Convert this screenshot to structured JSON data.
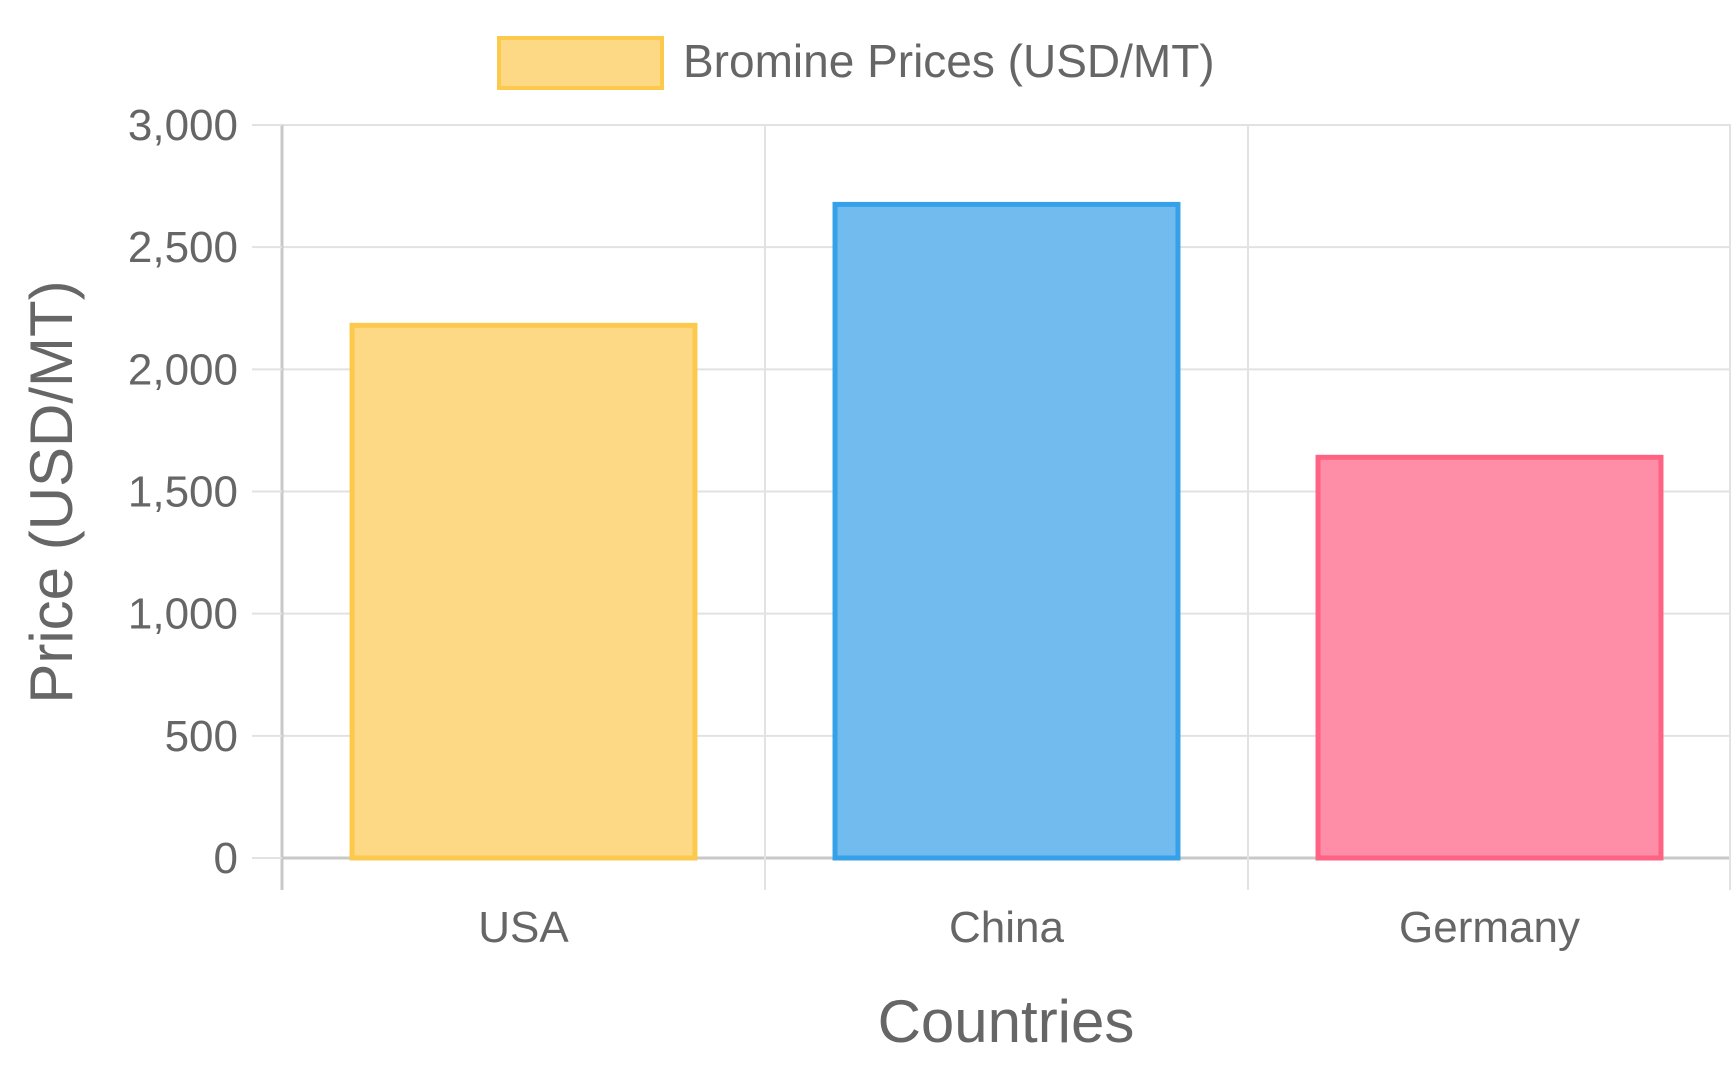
{
  "chart_data": {
    "type": "bar",
    "title": "",
    "categories": [
      "USA",
      "China",
      "Germany"
    ],
    "series": [
      {
        "name": "Bromine Prices (USD/MT)",
        "values": [
          2180,
          2675,
          1640
        ]
      }
    ],
    "bar_fill_colors": [
      "#fdd985",
      "#72bbee",
      "#fe8ea7"
    ],
    "bar_border_colors": [
      "#fcc94d",
      "#36a1e9",
      "#fe6384"
    ],
    "xlabel": "Countries",
    "ylabel": "Price (USD/MT)",
    "ylim": [
      0,
      3000
    ],
    "yticks": [
      0,
      500,
      1000,
      1500,
      2000,
      2500,
      3000
    ],
    "ytick_labels": [
      "0",
      "500",
      "1,000",
      "1,500",
      "2,000",
      "2,500",
      "3,000"
    ],
    "grid": true,
    "legend_position": "top-center",
    "legend_swatch_fill": "#fdd985",
    "legend_swatch_border": "#fcc94d"
  }
}
